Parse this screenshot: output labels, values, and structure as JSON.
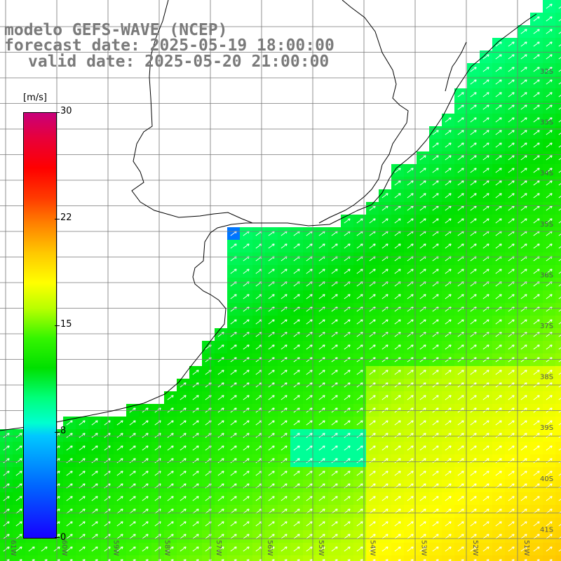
{
  "title": {
    "line1": "modelo GEFS-WAVE (NCEP)",
    "line2": "forecast date: 2025-05-19 18:00:00",
    "line3": "valid date: 2025-05-20 21:00:00"
  },
  "colorbar": {
    "unit": "[m/s]",
    "ticks": [
      "30",
      "22",
      "15",
      "8",
      "0"
    ],
    "colors": [
      "#1600ff",
      "#00c8ff",
      "#00e000",
      "#ffff00",
      "#ff0000",
      "#c8007a"
    ]
  },
  "map": {
    "lat_labels": [
      "32S",
      "33S",
      "34S",
      "35S",
      "36S",
      "37S",
      "38S",
      "39S",
      "40S",
      "41S"
    ],
    "lon_labels": [
      "61W",
      "60W",
      "59W",
      "58W",
      "57W",
      "56W",
      "55W",
      "54W",
      "53W",
      "52W",
      "51W"
    ],
    "coastline_color": "#000000",
    "grid_color": "#777777",
    "arrow_color": "#ffffff"
  }
}
